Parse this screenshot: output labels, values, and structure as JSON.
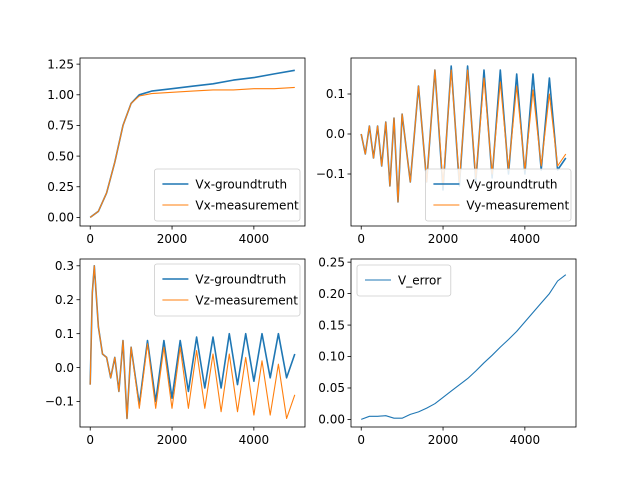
{
  "colors": {
    "groundtruth": "#1f77b4",
    "measurement": "#ff7f0e",
    "error": "#1f77b4"
  },
  "chart_data": [
    {
      "type": "line",
      "xlim": [
        -250,
        5250
      ],
      "ylim": [
        -0.07,
        1.3
      ],
      "xticks": [
        0,
        2000,
        4000
      ],
      "xtick_labels": [
        "0",
        "2000",
        "4000"
      ],
      "yticks": [
        0.0,
        0.25,
        0.5,
        0.75,
        1.0,
        1.25
      ],
      "ytick_labels": [
        "0.00",
        "0.25",
        "0.50",
        "0.75",
        "1.00",
        "1.25"
      ],
      "legend_position": "lower-right",
      "series": [
        {
          "name": "Vx-groundtruth",
          "color": "#1f77b4",
          "x": [
            0,
            200,
            400,
            600,
            800,
            1000,
            1200,
            1500,
            2000,
            2500,
            3000,
            3500,
            4000,
            4500,
            5000
          ],
          "y": [
            0.0,
            0.05,
            0.2,
            0.45,
            0.75,
            0.93,
            1.0,
            1.03,
            1.05,
            1.07,
            1.09,
            1.12,
            1.14,
            1.17,
            1.2
          ]
        },
        {
          "name": "Vx-measurement",
          "color": "#ff7f0e",
          "x": [
            0,
            200,
            400,
            600,
            800,
            1000,
            1200,
            1500,
            2000,
            2500,
            3000,
            3500,
            4000,
            4500,
            5000
          ],
          "y": [
            0.0,
            0.05,
            0.2,
            0.45,
            0.75,
            0.93,
            0.99,
            1.01,
            1.02,
            1.03,
            1.04,
            1.04,
            1.05,
            1.05,
            1.06
          ]
        }
      ]
    },
    {
      "type": "line",
      "xlim": [
        -250,
        5250
      ],
      "ylim": [
        -0.23,
        0.19
      ],
      "xticks": [
        0,
        2000,
        4000
      ],
      "xtick_labels": [
        "0",
        "2000",
        "4000"
      ],
      "yticks": [
        -0.1,
        0.0,
        0.1
      ],
      "ytick_labels": [
        "−0.1",
        "0.0",
        "0.1"
      ],
      "legend_position": "lower-right",
      "series": [
        {
          "name": "Vy-groundtruth",
          "color": "#1f77b4",
          "x": [
            0,
            100,
            200,
            300,
            400,
            500,
            600,
            700,
            800,
            900,
            1000,
            1200,
            1400,
            1600,
            1800,
            2000,
            2200,
            2400,
            2600,
            2800,
            3000,
            3200,
            3400,
            3600,
            3800,
            4000,
            4200,
            4400,
            4600,
            4800,
            5000
          ],
          "y": [
            0.0,
            -0.05,
            0.02,
            -0.06,
            0.02,
            -0.08,
            0.03,
            -0.13,
            0.04,
            -0.17,
            0.05,
            -0.12,
            0.12,
            -0.12,
            0.16,
            -0.14,
            0.17,
            -0.13,
            0.17,
            -0.12,
            0.16,
            -0.11,
            0.16,
            -0.1,
            0.15,
            -0.1,
            0.15,
            -0.09,
            0.14,
            -0.09,
            -0.06
          ]
        },
        {
          "name": "Vy-measurement",
          "color": "#ff7f0e",
          "x": [
            0,
            100,
            200,
            300,
            400,
            500,
            600,
            700,
            800,
            900,
            1000,
            1200,
            1400,
            1600,
            1800,
            2000,
            2200,
            2400,
            2600,
            2800,
            3000,
            3200,
            3400,
            3600,
            3800,
            4000,
            4200,
            4400,
            4600,
            4800,
            5000
          ],
          "y": [
            0.0,
            -0.05,
            0.02,
            -0.06,
            0.02,
            -0.08,
            0.03,
            -0.13,
            0.04,
            -0.17,
            0.05,
            -0.12,
            0.12,
            -0.12,
            0.16,
            -0.13,
            0.16,
            -0.12,
            0.16,
            -0.11,
            0.14,
            -0.1,
            0.13,
            -0.09,
            0.12,
            -0.09,
            0.11,
            -0.08,
            0.1,
            -0.08,
            -0.05
          ]
        }
      ]
    },
    {
      "type": "line",
      "xlim": [
        -250,
        5250
      ],
      "ylim": [
        -0.175,
        0.32
      ],
      "xticks": [
        0,
        2000,
        4000
      ],
      "xtick_labels": [
        "0",
        "2000",
        "4000"
      ],
      "yticks": [
        -0.1,
        0.0,
        0.1,
        0.2,
        0.3
      ],
      "ytick_labels": [
        "−0.1",
        "0.0",
        "0.1",
        "0.2",
        "0.3"
      ],
      "legend_position": "upper-right",
      "series": [
        {
          "name": "Vz-groundtruth",
          "color": "#1f77b4",
          "x": [
            0,
            50,
            100,
            200,
            300,
            400,
            500,
            600,
            700,
            800,
            900,
            1000,
            1200,
            1400,
            1600,
            1800,
            2000,
            2200,
            2400,
            2600,
            2800,
            3000,
            3200,
            3400,
            3600,
            3800,
            4000,
            4200,
            4400,
            4600,
            4800,
            5000
          ],
          "y": [
            -0.05,
            0.22,
            0.3,
            0.12,
            0.04,
            0.03,
            -0.03,
            0.03,
            -0.07,
            0.08,
            -0.15,
            0.06,
            -0.11,
            0.08,
            -0.1,
            0.08,
            -0.09,
            0.08,
            -0.07,
            0.09,
            -0.06,
            0.09,
            -0.06,
            0.1,
            -0.05,
            0.1,
            -0.04,
            0.1,
            -0.03,
            0.1,
            -0.03,
            0.04
          ]
        },
        {
          "name": "Vz-measurement",
          "color": "#ff7f0e",
          "x": [
            0,
            50,
            100,
            200,
            300,
            400,
            500,
            600,
            700,
            800,
            900,
            1000,
            1200,
            1400,
            1600,
            1800,
            2000,
            2200,
            2400,
            2600,
            2800,
            3000,
            3200,
            3400,
            3600,
            3800,
            4000,
            4200,
            4400,
            4600,
            4800,
            5000
          ],
          "y": [
            -0.05,
            0.22,
            0.3,
            0.12,
            0.04,
            0.03,
            -0.03,
            0.03,
            -0.07,
            0.08,
            -0.15,
            0.06,
            -0.12,
            0.07,
            -0.12,
            0.06,
            -0.12,
            0.06,
            -0.12,
            0.05,
            -0.12,
            0.04,
            -0.13,
            0.04,
            -0.13,
            0.03,
            -0.14,
            0.02,
            -0.14,
            0.01,
            -0.15,
            -0.08
          ]
        }
      ]
    },
    {
      "type": "line",
      "xlim": [
        -250,
        5250
      ],
      "ylim": [
        -0.012,
        0.255
      ],
      "xticks": [
        0,
        2000,
        4000
      ],
      "xtick_labels": [
        "0",
        "2000",
        "4000"
      ],
      "yticks": [
        0.0,
        0.05,
        0.1,
        0.15,
        0.2,
        0.25
      ],
      "ytick_labels": [
        "0.00",
        "0.05",
        "0.10",
        "0.15",
        "0.20",
        "0.25"
      ],
      "legend_position": "upper-left",
      "series": [
        {
          "name": "V_error",
          "color": "#1f77b4",
          "x": [
            0,
            200,
            400,
            600,
            800,
            1000,
            1200,
            1400,
            1600,
            1800,
            2000,
            2200,
            2400,
            2600,
            2800,
            3000,
            3200,
            3400,
            3600,
            3800,
            4000,
            4200,
            4400,
            4600,
            4800,
            5000
          ],
          "y": [
            0.0,
            0.005,
            0.005,
            0.006,
            0.002,
            0.002,
            0.008,
            0.012,
            0.018,
            0.025,
            0.035,
            0.045,
            0.055,
            0.065,
            0.077,
            0.09,
            0.102,
            0.115,
            0.127,
            0.14,
            0.155,
            0.17,
            0.185,
            0.2,
            0.22,
            0.23
          ]
        }
      ]
    }
  ]
}
